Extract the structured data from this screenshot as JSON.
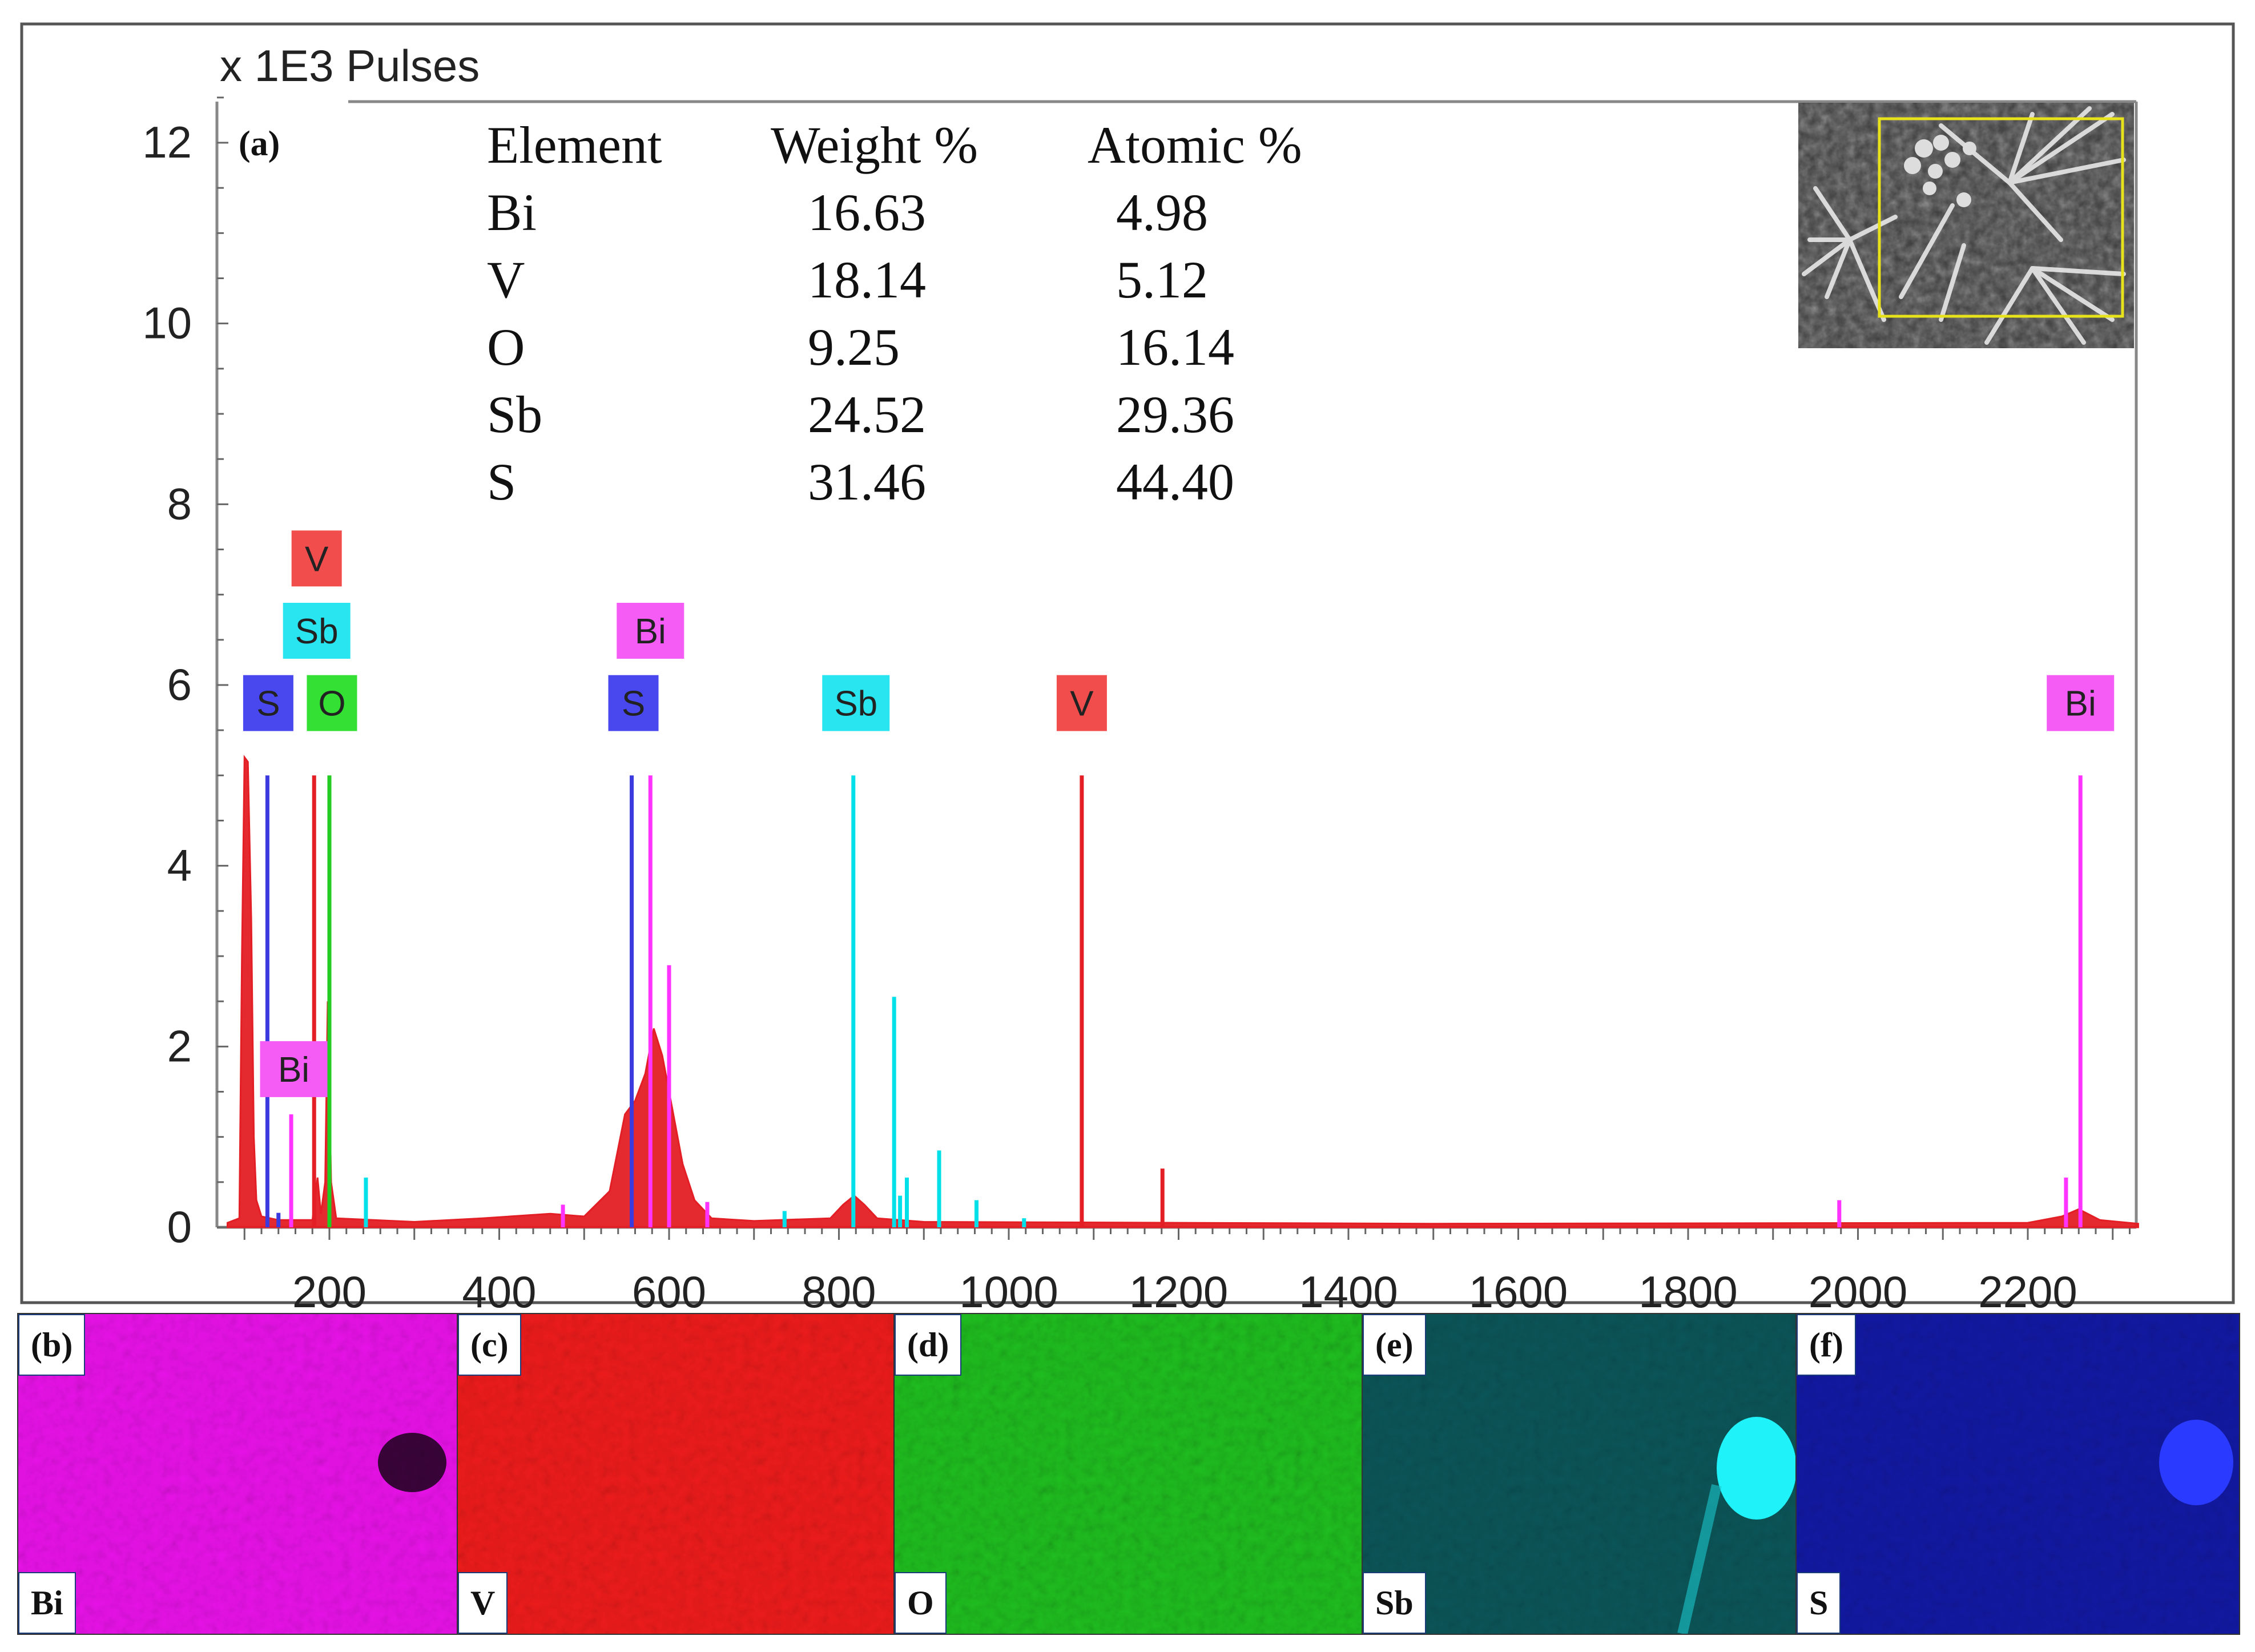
{
  "chart_data": {
    "type": "spectrum",
    "ylabel": "x 1E3 Pulses",
    "xlim": [
      80,
      2330
    ],
    "ylim": [
      0,
      12.5
    ],
    "x_ticks": [
      200,
      400,
      600,
      800,
      1000,
      1200,
      1400,
      1600,
      1800,
      2000,
      2200
    ],
    "y_ticks": [
      0,
      2,
      4,
      6,
      8,
      10,
      12
    ],
    "panel_label": "(a)",
    "spectrum": {
      "color": "#e31e24",
      "points": [
        [
          80,
          0.05
        ],
        [
          94,
          0.1
        ],
        [
          97,
          3.0
        ],
        [
          100,
          5.2
        ],
        [
          104,
          5.15
        ],
        [
          108,
          3.4
        ],
        [
          111,
          1.0
        ],
        [
          114,
          0.3
        ],
        [
          120,
          0.12
        ],
        [
          140,
          0.08
        ],
        [
          180,
          0.08
        ],
        [
          186,
          0.55
        ],
        [
          190,
          0.15
        ],
        [
          195,
          0.5
        ],
        [
          198,
          2.5
        ],
        [
          202,
          0.5
        ],
        [
          208,
          0.1
        ],
        [
          300,
          0.06
        ],
        [
          380,
          0.1
        ],
        [
          460,
          0.15
        ],
        [
          500,
          0.12
        ],
        [
          530,
          0.4
        ],
        [
          548,
          1.25
        ],
        [
          560,
          1.4
        ],
        [
          572,
          1.7
        ],
        [
          582,
          2.2
        ],
        [
          592,
          1.9
        ],
        [
          604,
          1.3
        ],
        [
          616,
          0.7
        ],
        [
          630,
          0.3
        ],
        [
          650,
          0.1
        ],
        [
          700,
          0.07
        ],
        [
          790,
          0.1
        ],
        [
          805,
          0.25
        ],
        [
          818,
          0.35
        ],
        [
          830,
          0.25
        ],
        [
          845,
          0.1
        ],
        [
          900,
          0.06
        ],
        [
          1500,
          0.04
        ],
        [
          2200,
          0.05
        ],
        [
          2240,
          0.12
        ],
        [
          2260,
          0.2
        ],
        [
          2285,
          0.08
        ],
        [
          2330,
          0.04
        ]
      ]
    },
    "series": [
      {
        "name": "S",
        "color": "#3a3adf",
        "lines": [
          [
            127,
            5.0
          ],
          [
            140,
            0.16
          ],
          [
            556,
            5.0
          ]
        ]
      },
      {
        "name": "Bi",
        "color": "#ff33ff",
        "lines": [
          [
            155,
            1.25
          ],
          [
            578,
            5.0
          ],
          [
            600,
            2.9
          ],
          [
            475,
            0.25
          ],
          [
            645,
            0.28
          ],
          [
            1978,
            0.3
          ],
          [
            2262,
            5.0
          ],
          [
            2245,
            0.55
          ]
        ]
      },
      {
        "name": "V",
        "color": "#e31e24",
        "lines": [
          [
            182,
            5.0
          ],
          [
            1086,
            5.0
          ],
          [
            1181,
            0.65
          ]
        ]
      },
      {
        "name": "O",
        "color": "#22cc22",
        "lines": [
          [
            200,
            5.0
          ]
        ]
      },
      {
        "name": "Sb",
        "color": "#00e0e8",
        "lines": [
          [
            243,
            0.55
          ],
          [
            817,
            5.0
          ],
          [
            865,
            2.55
          ],
          [
            872,
            0.35
          ],
          [
            880,
            0.55
          ],
          [
            918,
            0.85
          ],
          [
            962,
            0.3
          ],
          [
            736,
            0.18
          ],
          [
            1018,
            0.1
          ]
        ]
      }
    ],
    "peak_labels": [
      {
        "text": "V",
        "color": "#f24d4d",
        "x": 185,
        "y": 7.4
      },
      {
        "text": "Sb",
        "color": "#29e5f0",
        "x": 185,
        "y": 6.6
      },
      {
        "text": "S",
        "color": "#4848ee",
        "x": 128,
        "y": 5.8
      },
      {
        "text": "O",
        "color": "#33e033",
        "x": 203,
        "y": 5.8
      },
      {
        "text": "Bi",
        "color": "#f55cf5",
        "x": 158,
        "y": 1.75
      },
      {
        "text": "Bi",
        "color": "#f55cf5",
        "x": 578,
        "y": 6.6
      },
      {
        "text": "S",
        "color": "#4848ee",
        "x": 558,
        "y": 5.8
      },
      {
        "text": "Sb",
        "color": "#29e5f0",
        "x": 820,
        "y": 5.8
      },
      {
        "text": "V",
        "color": "#f24d4d",
        "x": 1086,
        "y": 5.8
      },
      {
        "text": "Bi",
        "color": "#f55cf5",
        "x": 2262,
        "y": 5.8
      }
    ],
    "table": {
      "headers": [
        "Element",
        "Weight %",
        "Atomic %"
      ],
      "rows": [
        [
          "Bi",
          "16.63",
          "4.98"
        ],
        [
          "V",
          "18.14",
          "5.12"
        ],
        [
          "O",
          "9.25",
          "16.14"
        ],
        [
          "Sb",
          "24.52",
          "29.36"
        ],
        [
          "S",
          "31.46",
          "44.40"
        ]
      ]
    }
  },
  "maps": [
    {
      "panel": "(b)",
      "element": "Bi",
      "color": "#e812e8"
    },
    {
      "panel": "(c)",
      "element": "V",
      "color": "#ee1b1b"
    },
    {
      "panel": "(d)",
      "element": "O",
      "color": "#1fbf1f"
    },
    {
      "panel": "(e)",
      "element": "Sb",
      "color": "#14b8be"
    },
    {
      "panel": "(f)",
      "element": "S",
      "color": "#1a24e0"
    }
  ]
}
